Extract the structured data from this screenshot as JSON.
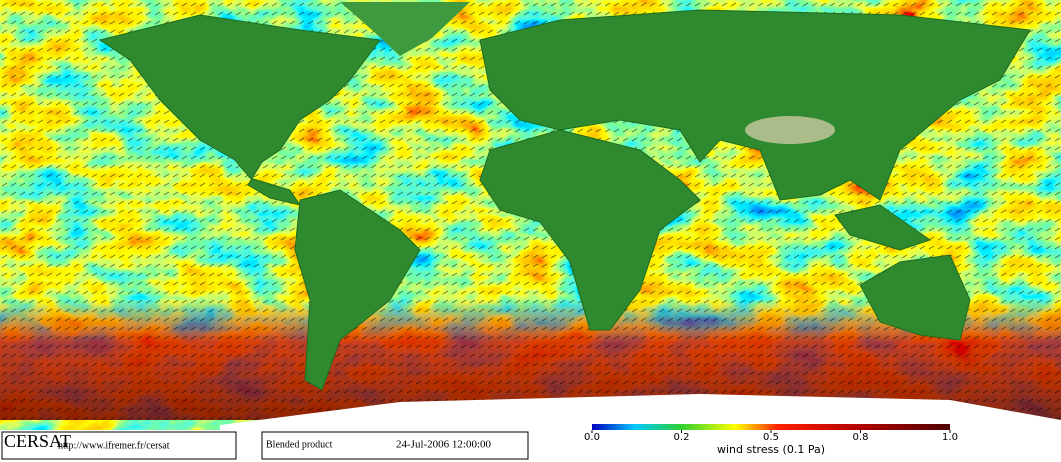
{
  "footer": {
    "logo": "CERSAT",
    "url": "http://www.ifremer.fr/cersat",
    "product": "Blended product",
    "date": "24-Jul-2006 12:00:00"
  },
  "colorbar": {
    "title": "wind stress (0.1 Pa)",
    "ticks": [
      {
        "value": 0,
        "label": "0.0"
      },
      0.2,
      0.5,
      {
        "value": 0.8,
        "label": "0.8"
      },
      {
        "value": 1,
        "label": "1.0"
      }
    ]
  }
}
